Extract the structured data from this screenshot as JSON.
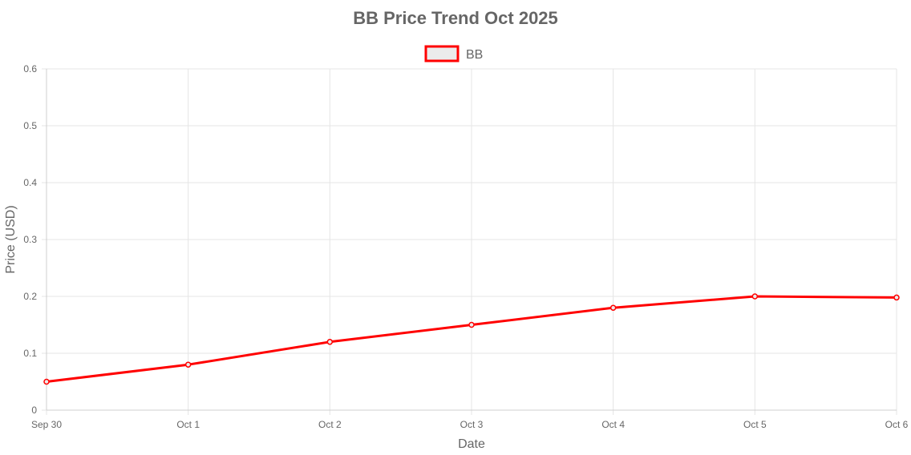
{
  "chart_data": {
    "type": "line",
    "title": "BB Price Trend Oct 2025",
    "xlabel": "Date",
    "ylabel": "Price (USD)",
    "categories": [
      "Sep 30",
      "Oct 1",
      "Oct 2",
      "Oct 3",
      "Oct 4",
      "Oct 5",
      "Oct 6"
    ],
    "yticks": [
      "0",
      "0.1",
      "0.2",
      "0.3",
      "0.4",
      "0.5",
      "0.6"
    ],
    "ylim": [
      0,
      0.6
    ],
    "grid": true,
    "legend_position": "top-center",
    "series": [
      {
        "name": "BB",
        "color": "#ff0000",
        "legend_fill": "#ebebeb",
        "values": [
          0.05,
          0.08,
          0.12,
          0.15,
          0.18,
          0.2,
          0.198
        ]
      }
    ]
  }
}
